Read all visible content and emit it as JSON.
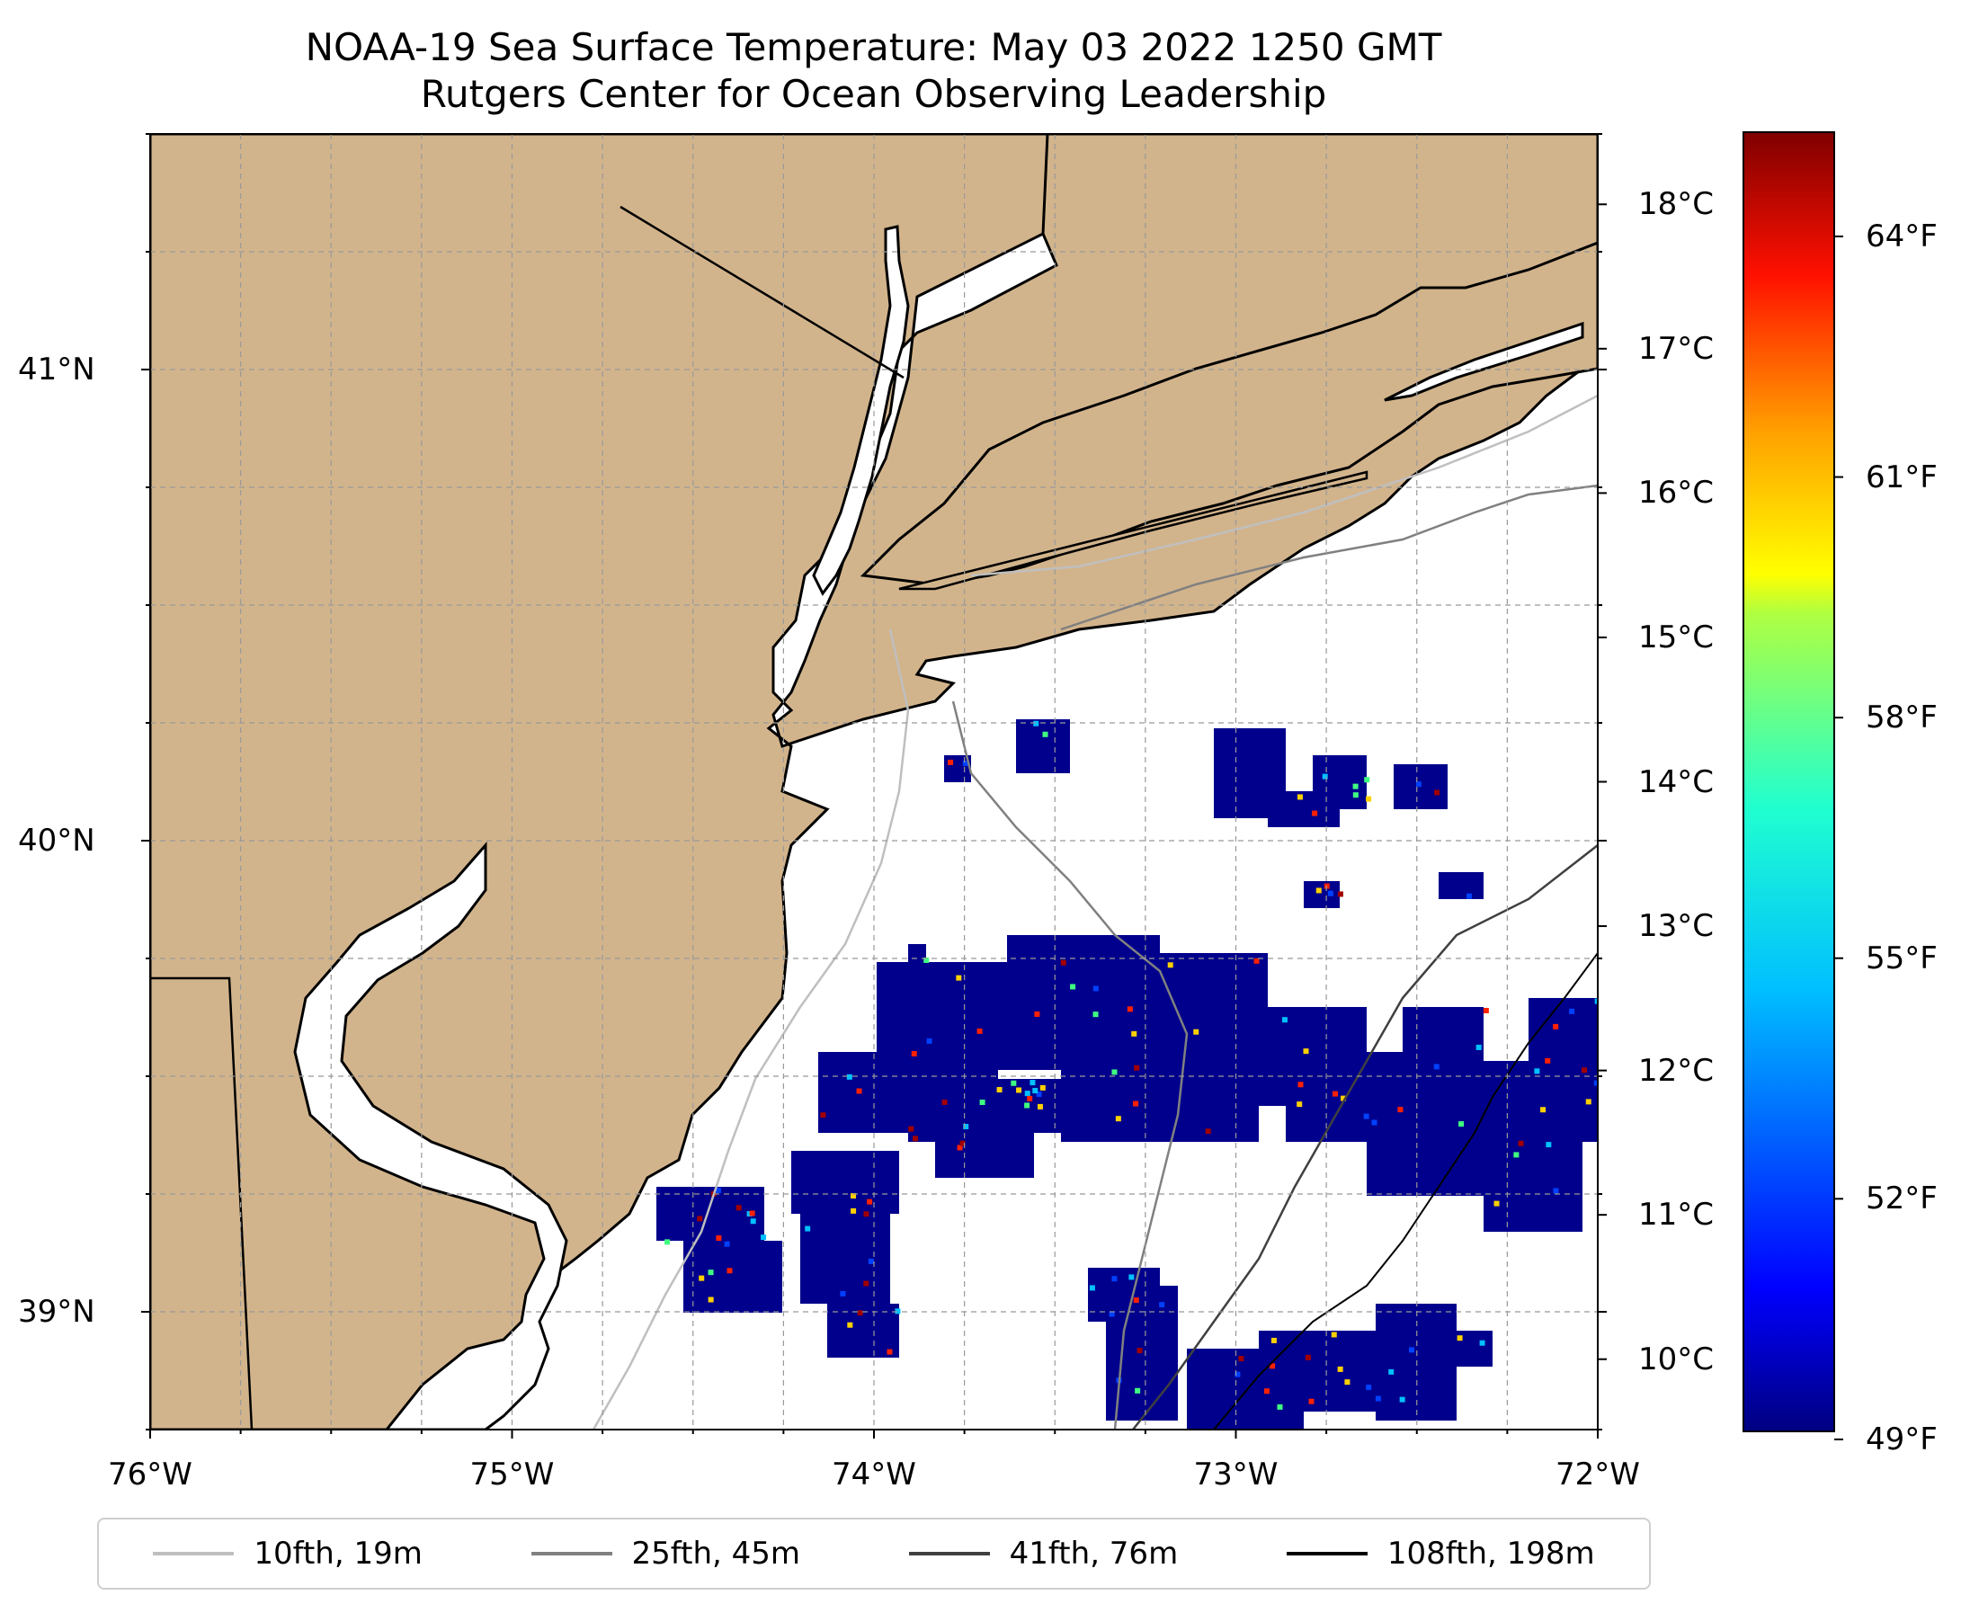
{
  "title": {
    "line1": "NOAA-19 Sea Surface Temperature: May 03 2022 1250 GMT",
    "line2": "Rutgers Center for Ocean Observing Leadership"
  },
  "map": {
    "extent": {
      "lon_min": -76.0,
      "lon_max": -72.0,
      "lat_min": 38.75,
      "lat_max": 41.5
    },
    "land_color": "#D2B48C",
    "no_data_color": "#FFFFFF",
    "gridlines": true,
    "lat_ticks": [
      {
        "value": 41.0,
        "label": "41°N"
      },
      {
        "value": 40.0,
        "label": "40°N"
      },
      {
        "value": 39.0,
        "label": "39°N"
      }
    ],
    "lon_ticks": [
      {
        "value": -76.0,
        "label": "76°W"
      },
      {
        "value": -75.0,
        "label": "75°W"
      },
      {
        "value": -74.0,
        "label": "74°W"
      },
      {
        "value": -73.0,
        "label": "73°W"
      },
      {
        "value": -72.0,
        "label": "72°W"
      }
    ]
  },
  "colorbar": {
    "colormap": "jet",
    "range_c": [
      9.5,
      18.5
    ],
    "celsius_ticks": [
      {
        "value": 18,
        "label": "18°C"
      },
      {
        "value": 17,
        "label": "17°C"
      },
      {
        "value": 16,
        "label": "16°C"
      },
      {
        "value": 15,
        "label": "15°C"
      },
      {
        "value": 14,
        "label": "14°C"
      },
      {
        "value": 13,
        "label": "13°C"
      },
      {
        "value": 12,
        "label": "12°C"
      },
      {
        "value": 11,
        "label": "11°C"
      },
      {
        "value": 10,
        "label": "10°C"
      }
    ],
    "fahrenheit_ticks": [
      {
        "value": 64,
        "label": "64°F"
      },
      {
        "value": 61,
        "label": "61°F"
      },
      {
        "value": 58,
        "label": "58°F"
      },
      {
        "value": 55,
        "label": "55°F"
      },
      {
        "value": 52,
        "label": "52°F"
      },
      {
        "value": 49,
        "label": "49°F"
      }
    ]
  },
  "legend": {
    "placement": "bottom",
    "items": [
      {
        "label": "10fth, 19m",
        "color": "#BFBFBF"
      },
      {
        "label": "25fth, 45m",
        "color": "#808080"
      },
      {
        "label": "41fth, 76m",
        "color": "#404040"
      },
      {
        "label": "108fth, 198m",
        "color": "#000000"
      }
    ]
  }
}
